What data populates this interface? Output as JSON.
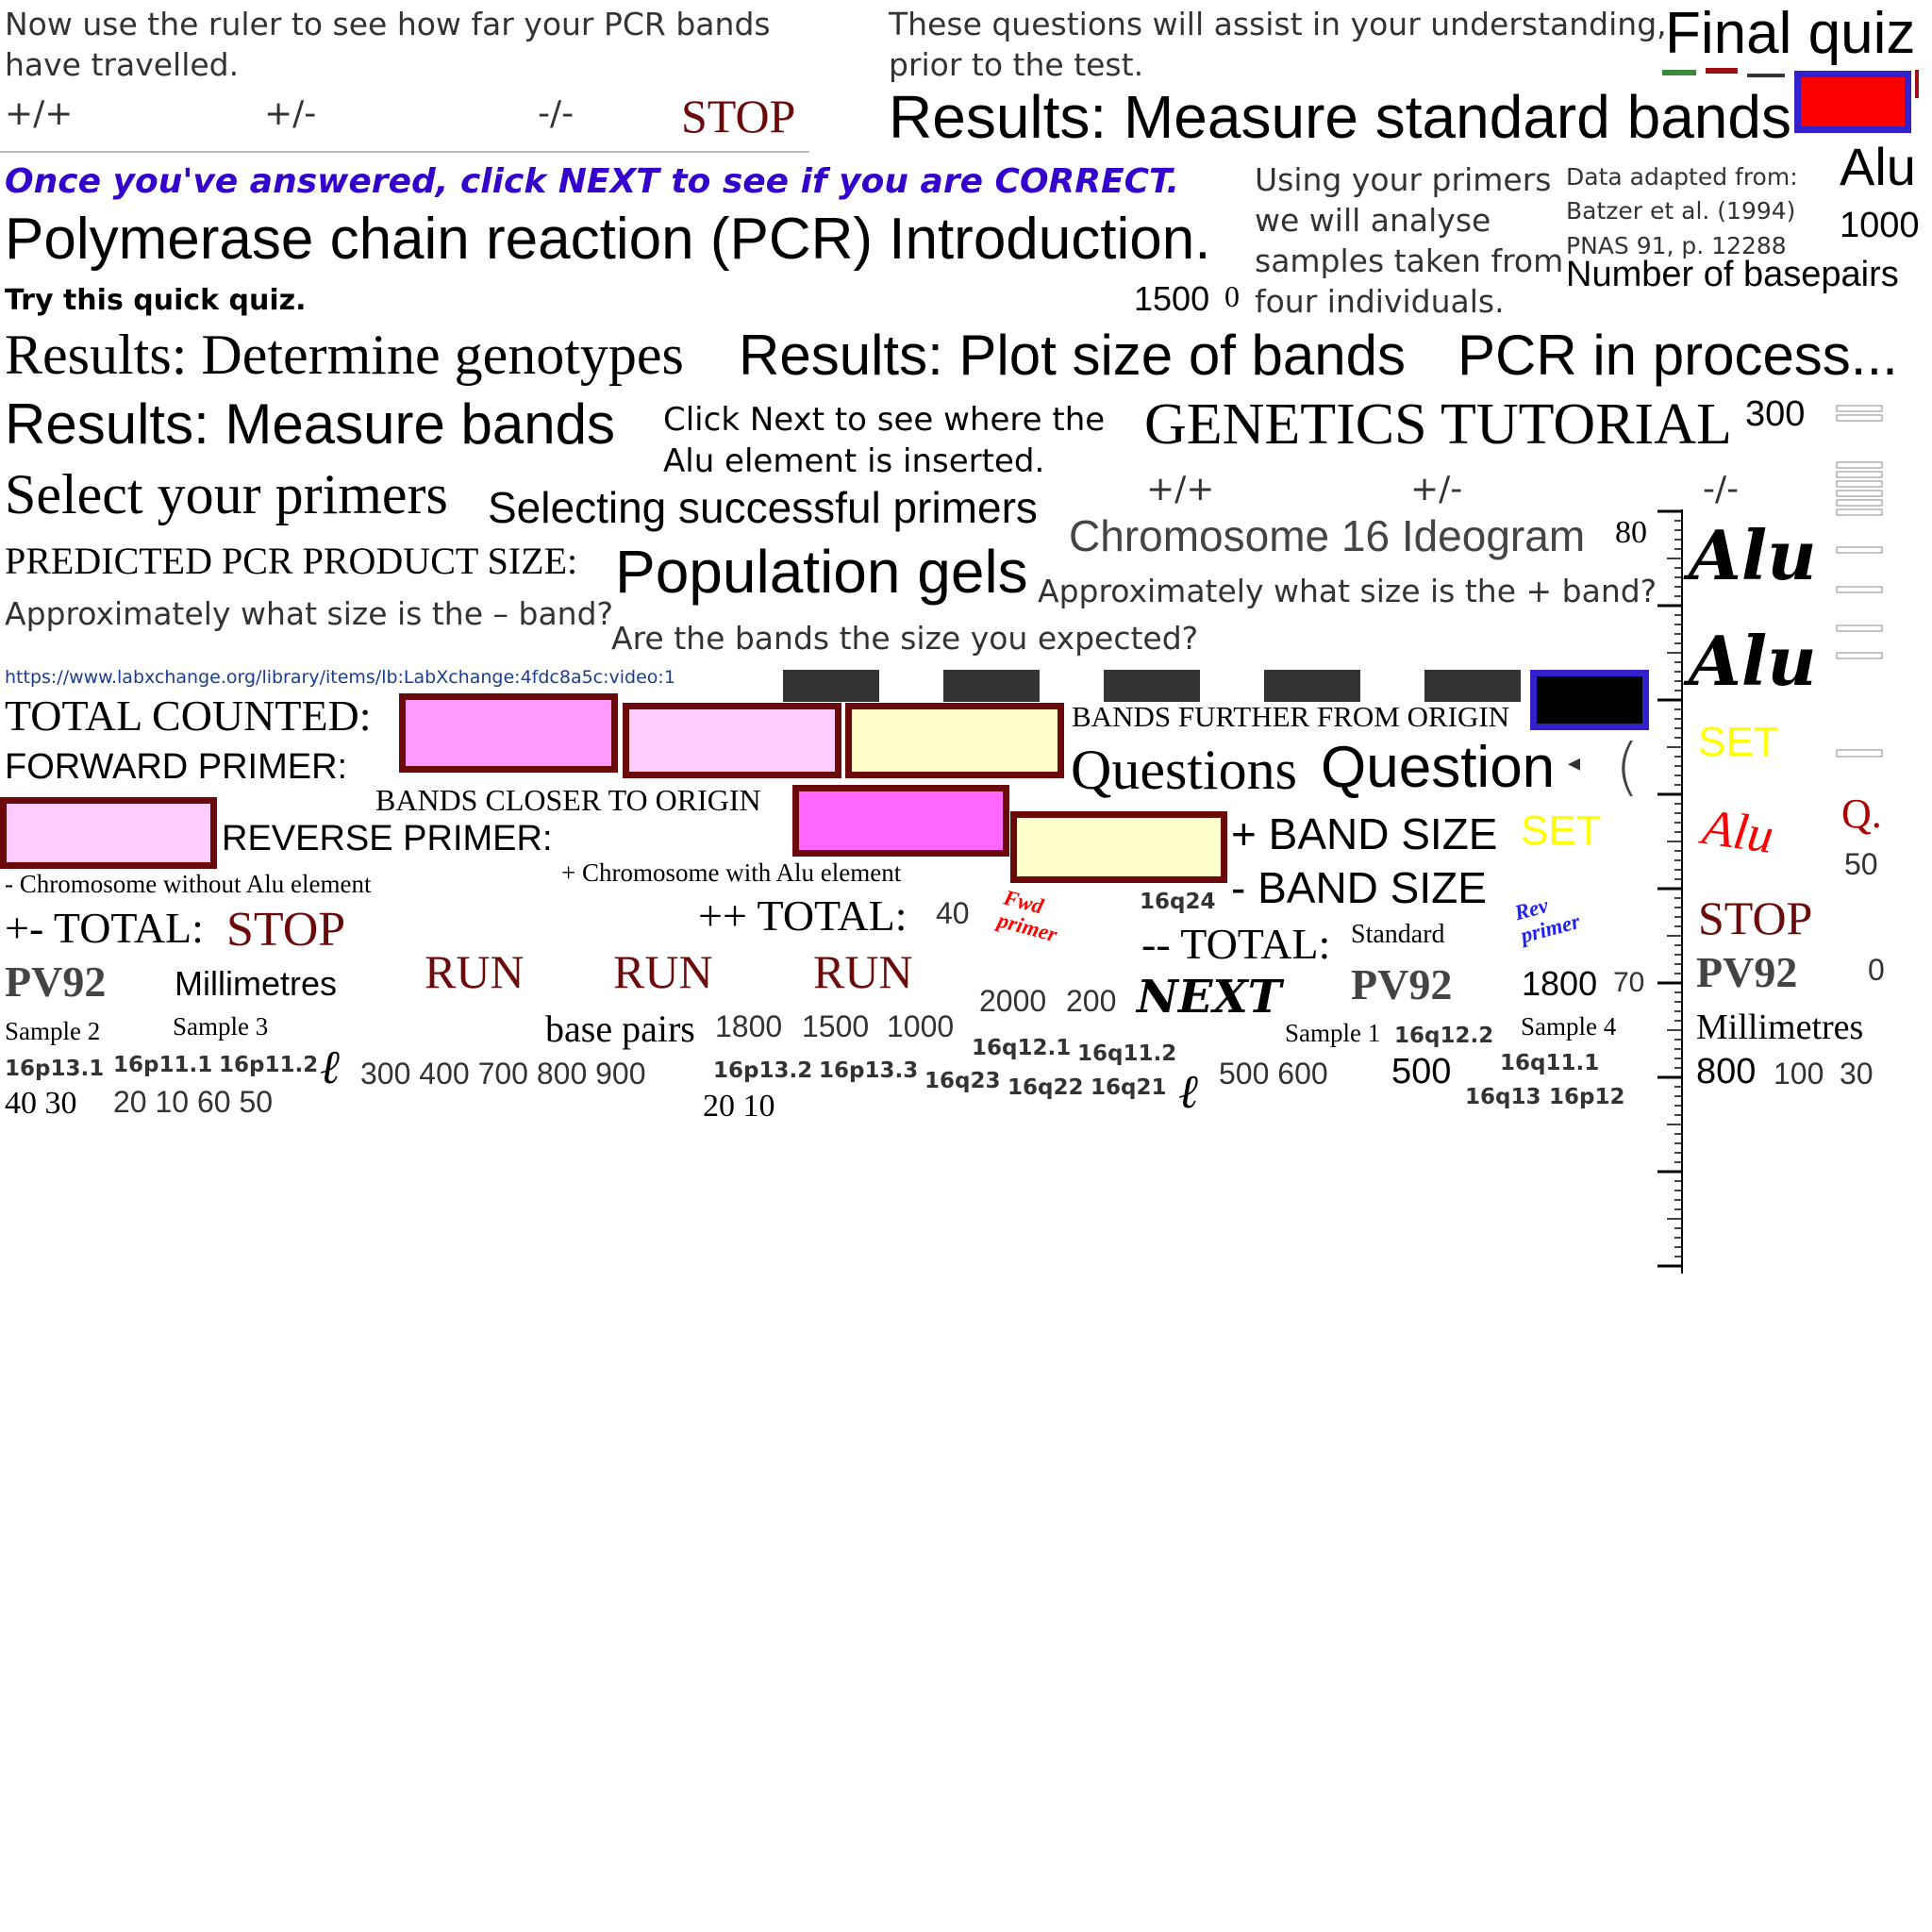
{
  "intro": {
    "ruler_instruction": "Now use the ruler to see how far your PCR bands have travelled.",
    "questions_help": "These questions will assist in your understanding, prior to the test.",
    "final_quiz": "Final quiz",
    "results_standard": "Results: Measure standard bands",
    "answer_prompt": "Once you've answered, click NEXT to see if you are CORRECT.",
    "pcr_intro": "Polymerase chain reaction (PCR) Introduction.",
    "primers_analyse": "Using your primers we will analyse samples taken from four individuals.",
    "data_source": "Data adapted from: Batzer et al. (1994) PNAS 91, p. 12288",
    "alu_title": "Alu",
    "n1000_top": "1000",
    "num_basepairs": "Number of basepairs",
    "quick_quiz": "Try this quick quiz.",
    "n1500_0": "1500",
    "n0_top": "0",
    "determine_genotypes": "Results: Determine genotypes",
    "plot_size": "Results: Plot size of bands",
    "pcr_process": "PCR in process...",
    "measure_bands": "Results: Measure bands",
    "click_next_alu": "Click Next to see where the Alu element is inserted.",
    "genetics_tutorial": "GENETICS TUTORIAL",
    "n300_top": "300",
    "select_primers": "Select your primers",
    "selecting_primers": "Selecting successful primers",
    "chromosome_ideogram": "Chromosome 16 Ideogram",
    "n80": "80",
    "predicted_size": "PREDICTED PCR PRODUCT SIZE:",
    "population_gels": "Population gels",
    "q_minus_band": "Approximately what size is the – band?",
    "q_plus_band": "Approximately what size is the + band?",
    "q_expected": "Are the bands the size you expected?",
    "video_url": "https://www.labxchange.org/library/items/lb:LabXchange:4fdc8a5c:video:1"
  },
  "genotypes": {
    "pp": "+/+",
    "pm": "+/-",
    "mm": "-/-",
    "stop": "STOP",
    "pp2": "+/+",
    "pm2": "+/-",
    "mm2": "-/-"
  },
  "labels": {
    "total_counted": "TOTAL COUNTED:",
    "forward_primer": "FORWARD PRIMER:",
    "bands_further": "BANDS FURTHER FROM ORIGIN",
    "questions": "Questions",
    "question": "Question",
    "bands_closer": "BANDS CLOSER TO ORIGIN",
    "set1": "SET",
    "reverse_primer": "REVERSE PRIMER:",
    "plus_band_size": "+ BAND SIZE",
    "set2": "SET",
    "alu_red": "Alu",
    "q_red": "Q.",
    "chrom_without": "- Chromosome without Alu element",
    "chrom_with": "+ Chromosome with Alu element",
    "minus_band_size": "- BAND SIZE",
    "n50": "50",
    "pm_total": "+- TOTAL:",
    "stop2": "STOP",
    "pp_total": "++ TOTAL:",
    "n40": "40",
    "fwd_primer": "Fwd primer",
    "band_16q24": "16q24",
    "rev_primer": "Rev primer",
    "mm_total": "-- TOTAL:",
    "standard": "Standard",
    "stop3": "STOP",
    "n0_right": "0",
    "pv92_a": "PV92",
    "millimetres_a": "Millimetres",
    "run1": "RUN",
    "run2": "RUN",
    "run3": "RUN",
    "n2000": "2000",
    "n200": "200",
    "next": "NEXT",
    "pv92_b": "PV92",
    "n1800_a": "1800",
    "n70": "70",
    "pv92_c": "PV92",
    "sample2": "Sample 2",
    "sample3": "Sample 3",
    "base_pairs": "base pairs",
    "n1800_b": "1800",
    "n1500": "1500",
    "n1000": "1000",
    "sample1": "Sample 1",
    "band_16q12_2": "16q12.2",
    "sample4": "Sample 4",
    "millimetres_b": "Millimetres",
    "band_16q12_1": "16q12.1",
    "band_16q11_2a": "16q11.2",
    "band_16p13_1": "16p13.1",
    "band_16p11_1": "16p11.1",
    "band_16p11_2": "16p11.2",
    "nums_300_900": "300  400  700  800  900",
    "band_16p13_2": "16p13.2",
    "band_16p13_3": "16p13.3",
    "band_16q23": "16q23",
    "band_16q22": "16q22",
    "band_16q21": "16q21",
    "nums_500_600": "500  600",
    "n500": "500",
    "band_16q11_1": "16q11.1",
    "n800": "800",
    "n100": "100",
    "n30": "30",
    "band_16q13": "16q13",
    "band_16p12": "16p12",
    "nums_40_30": "40 30",
    "nums_20_50": "20  10  60  50",
    "nums_20_10": "20 10"
  },
  "colors": {
    "maroon": "#6b0a0a",
    "pink_light": "#ffccff",
    "pink": "#ff99ff",
    "magenta": "#ff66ff",
    "cream": "#ffffcc",
    "blue_prompt": "#3300cc",
    "yellow_set": "#ffff00",
    "red": "#ff0000",
    "blue_border": "#3322cc"
  }
}
